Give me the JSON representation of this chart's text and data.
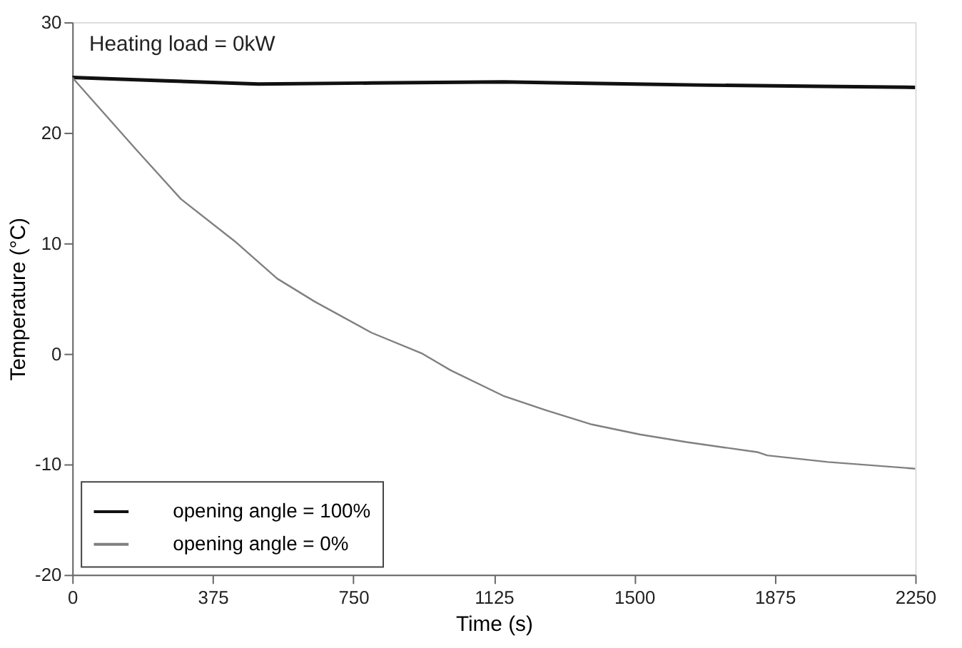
{
  "chart_data": {
    "type": "line",
    "xlabel": "Time (s)",
    "ylabel": "Temperature (°C)",
    "annotations": [
      "Heating load = 0kW"
    ],
    "xlim": [
      0,
      2250
    ],
    "xticks": [
      0,
      375,
      750,
      1125,
      1500,
      1875,
      2250
    ],
    "ylim": [
      -20,
      30
    ],
    "yticks": [
      -20,
      -10,
      0,
      10,
      20,
      30
    ],
    "grid": false,
    "legend": "bottom left",
    "marker": "none",
    "line_style": "solid",
    "series": [
      {
        "name": "opening angle = 100%",
        "color": "#111111",
        "x": [
          0,
          250,
          497,
          800,
          1150,
          1500,
          1700,
          2000,
          2250
        ],
        "values": [
          25,
          24.7,
          24.4,
          24.5,
          24.6,
          24.4,
          24.3,
          24.2,
          24.1
        ]
      },
      {
        "name": "opening angle = 0%",
        "color": "#808080",
        "x": [
          0,
          94,
          170,
          290,
          433,
          547,
          648,
          799,
          935,
          1010,
          1150,
          1263,
          1387,
          1515,
          1640,
          1828,
          1855,
          2017,
          2250
        ],
        "values": [
          25,
          21.4,
          18.5,
          14.0,
          10.2,
          6.8,
          4.7,
          1.9,
          0,
          -1.5,
          -3.8,
          -5.1,
          -6.4,
          -7.3,
          -8.0,
          -8.9,
          -9.2,
          -9.8,
          -10.4
        ]
      }
    ]
  }
}
